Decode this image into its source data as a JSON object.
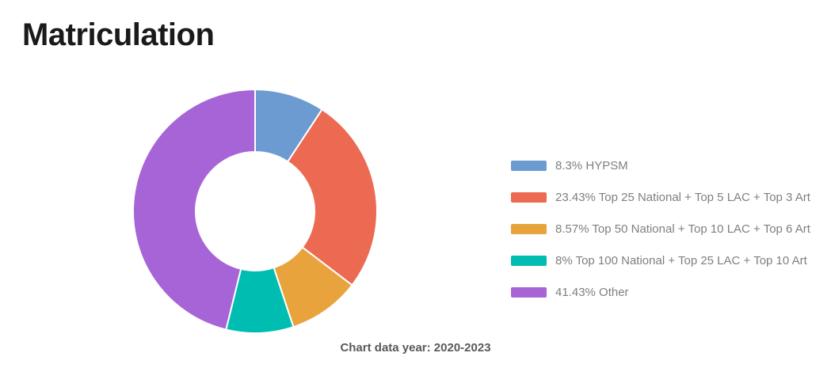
{
  "page": {
    "background_color": "#ffffff"
  },
  "chart_data": {
    "type": "pie",
    "subtype": "donut",
    "title": "Matriculation",
    "caption": "Chart data year: 2020-2023",
    "legend_position": "right",
    "start_angle_deg": 0,
    "direction": "clockwise",
    "inner_radius_ratio": 0.49,
    "note": "segment angles are normalized to the sum of values (89.73)",
    "segments": [
      {
        "name": "HYPSM",
        "value": 8.3,
        "label": "8.3% HYPSM",
        "color": "#6C9BD2"
      },
      {
        "name": "Top 25 National + Top 5 LAC + Top 3 Art",
        "value": 23.43,
        "label": "23.43% Top 25 National + Top 5 LAC + Top 3 Art",
        "color": "#EC6952"
      },
      {
        "name": "Top 50 National + Top 10 LAC + Top 6 Art",
        "value": 8.57,
        "label": "8.57% Top 50 National + Top 10 LAC + Top 6 Art",
        "color": "#E8A33D"
      },
      {
        "name": "Top 100 National + Top 25 LAC + Top 10 Art",
        "value": 8,
        "label": "8% Top 100 National + Top 25 LAC + Top 10 Art",
        "color": "#00BDB2"
      },
      {
        "name": "Other",
        "value": 41.43,
        "label": "41.43% Other",
        "color": "#A764D6"
      }
    ]
  }
}
